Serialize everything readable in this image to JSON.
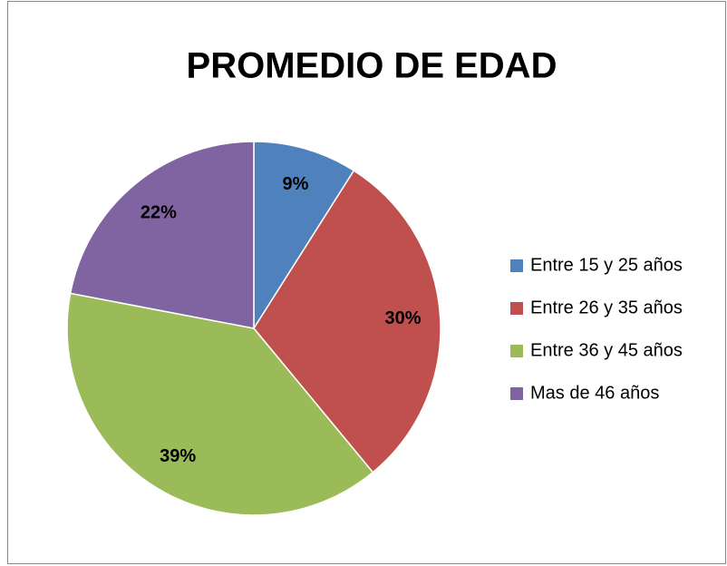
{
  "chart_data": {
    "type": "pie",
    "title": "PROMEDIO DE EDAD",
    "categories": [
      "Entre 15 y 25 años",
      "Entre 26 y 35 años",
      "Entre 36 y 45 años",
      "Mas de 46 años"
    ],
    "values": [
      9,
      30,
      39,
      22
    ],
    "value_labels": [
      "9%",
      "30%",
      "39%",
      "22%"
    ],
    "colors": [
      "#4f81bd",
      "#c0504d",
      "#9bbb59",
      "#8064a2"
    ],
    "legend": "right"
  }
}
